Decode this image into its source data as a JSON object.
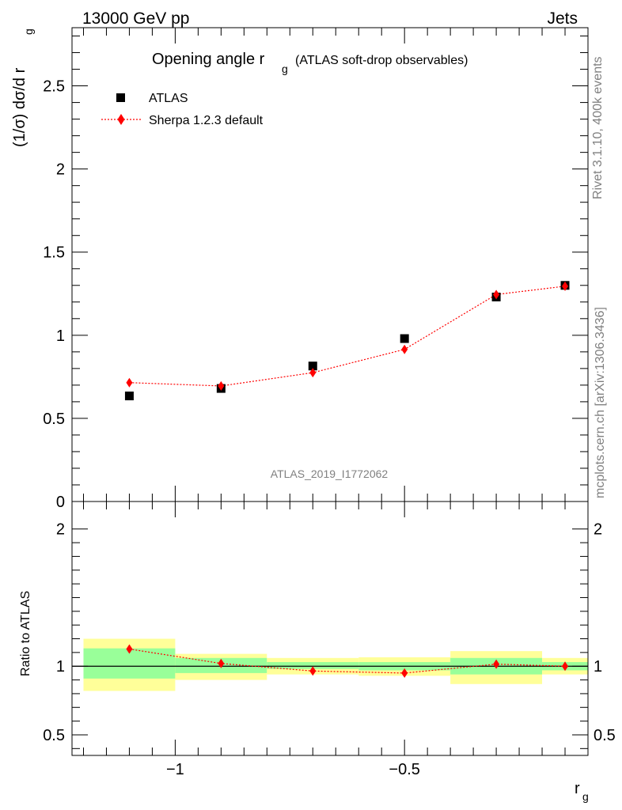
{
  "header": {
    "left": "13000 GeV pp",
    "right": "Jets"
  },
  "side": {
    "rivet": "Rivet 3.1.10,  400k events",
    "mcplots": "mcplots.cern.ch [arXiv:1306.3436]"
  },
  "watermark": "ATLAS_2019_I1772062",
  "colors": {
    "data": "#000000",
    "mc": "#ff0000",
    "band_inner": "#99ff99",
    "band_outer": "#ffff99"
  },
  "chart_data": [
    {
      "type": "scatter",
      "title": "Opening angle r",
      "title_sub": "g",
      "title_note": "(ATLAS soft-drop observables)",
      "ylabel_main": "(1/σ) dσ/d r",
      "ylabel_sub": "g",
      "xlim": [
        -1.225,
        -0.1
      ],
      "ylim": [
        0,
        2.85
      ],
      "y_ticks": [
        "0",
        "0.5",
        "1",
        "1.5",
        "2",
        "2.5"
      ],
      "legend_position": "top-left",
      "legend": [
        "ATLAS",
        "Sherpa 1.2.3 default"
      ],
      "series": [
        {
          "name": "ATLAS",
          "x": [
            -1.1,
            -0.9,
            -0.7,
            -0.5,
            -0.3,
            -0.15
          ],
          "y": [
            0.635,
            0.68,
            0.815,
            0.98,
            1.23,
            1.3
          ]
        },
        {
          "name": "Sherpa 1.2.3 default",
          "x": [
            -1.1,
            -0.9,
            -0.7,
            -0.5,
            -0.3,
            -0.15
          ],
          "y": [
            0.715,
            0.695,
            0.775,
            0.915,
            1.245,
            1.295
          ]
        }
      ]
    },
    {
      "type": "scatter",
      "ylabel": "Ratio to ATLAS",
      "xlabel_main": "r",
      "xlabel_sub": "g",
      "xlim": [
        -1.225,
        -0.1
      ],
      "ylim": [
        0.35,
        2.2
      ],
      "x_ticks": [
        "−1",
        "−0.5"
      ],
      "y_ticks": [
        "0.5",
        "1",
        "2"
      ],
      "bins": [
        {
          "lo": -1.2,
          "hi": -1.0,
          "inner": [
            0.91,
            1.13
          ],
          "outer": [
            0.82,
            1.2
          ]
        },
        {
          "lo": -1.0,
          "hi": -0.8,
          "inner": [
            0.95,
            1.06
          ],
          "outer": [
            0.9,
            1.09
          ]
        },
        {
          "lo": -0.8,
          "hi": -0.6,
          "inner": [
            0.98,
            1.03
          ],
          "outer": [
            0.94,
            1.06
          ]
        },
        {
          "lo": -0.6,
          "hi": -0.4,
          "inner": [
            0.97,
            1.03
          ],
          "outer": [
            0.93,
            1.065
          ]
        },
        {
          "lo": -0.4,
          "hi": -0.2,
          "inner": [
            0.94,
            1.06
          ],
          "outer": [
            0.87,
            1.11
          ]
        },
        {
          "lo": -0.2,
          "hi": -0.1,
          "inner": [
            0.97,
            1.03
          ],
          "outer": [
            0.94,
            1.06
          ]
        }
      ],
      "series": [
        {
          "name": "Sherpa 1.2.3 default",
          "x": [
            -1.1,
            -0.9,
            -0.7,
            -0.5,
            -0.3,
            -0.15
          ],
          "y": [
            1.125,
            1.02,
            0.965,
            0.95,
            1.015,
            1.0
          ]
        }
      ]
    }
  ]
}
